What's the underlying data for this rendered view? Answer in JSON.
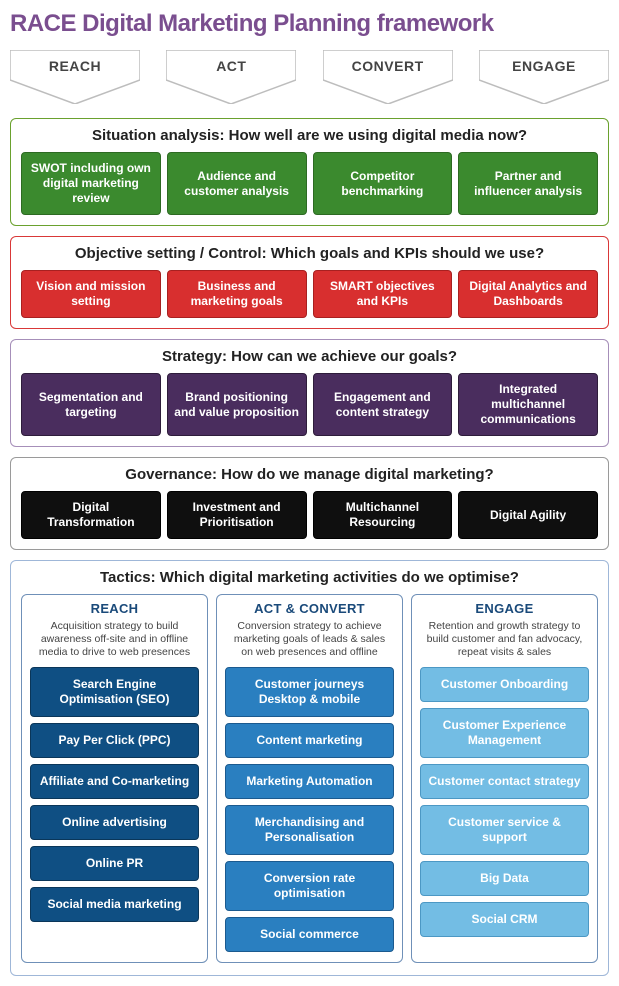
{
  "title": "RACE Digital Marketing Planning framework",
  "title_color": "#7a4e8f",
  "chevrons": [
    "REACH",
    "ACT",
    "CONVERT",
    "ENGAGE"
  ],
  "chevron_fill": "#ffffff",
  "chevron_stroke": "#bdbdbd",
  "sections": [
    {
      "title": "Situation analysis: How well are we using digital media now?",
      "border": "#6aa12e",
      "bg": "#ffffff",
      "box_bg": "#3b8a2e",
      "box_border": "#2d6a22",
      "boxes": [
        "SWOT including own digital marketing review",
        "Audience and customer analysis",
        "Competitor benchmarking",
        "Partner and influencer analysis"
      ]
    },
    {
      "title": "Objective setting / Control: Which goals and KPIs should we use?",
      "border": "#d93838",
      "bg": "#ffffff",
      "box_bg": "#d82f2f",
      "box_border": "#a82020",
      "boxes": [
        "Vision and mission setting",
        "Business and marketing goals",
        "SMART objectives and KPIs",
        "Digital Analytics and Dashboards"
      ]
    },
    {
      "title": "Strategy: How can we achieve our goals?",
      "border": "#a68fb9",
      "bg": "#ffffff",
      "box_bg": "#4a2d5e",
      "box_border": "#2e1c3b",
      "boxes": [
        "Segmentation and targeting",
        "Brand positioning and value proposition",
        "Engagement and content strategy",
        "Integrated multichannel communications"
      ]
    },
    {
      "title": "Governance: How do we manage digital marketing?",
      "border": "#9a9a9a",
      "bg": "#ffffff",
      "box_bg": "#0f0f0f",
      "box_border": "#000000",
      "boxes": [
        "Digital Transformation",
        "Investment and Prioritisation",
        "Multichannel Resourcing",
        "Digital Agility"
      ]
    }
  ],
  "tactics": {
    "title": "Tactics: Which digital marketing activities do we optimise?",
    "border": "#9fb7d8",
    "columns": [
      {
        "head": "REACH",
        "sub": "Acquisition strategy to build awareness off-site and in offline media to drive to web presences",
        "border": "#6f90b8",
        "head_color": "#1a4a7a",
        "box_bg": "#0f4f83",
        "box_border": "#0a3659",
        "items": [
          "Search Engine Optimisation (SEO)",
          "Pay Per Click (PPC)",
          "Affiliate and Co-marketing",
          "Online advertising",
          "Online PR",
          "Social media marketing"
        ]
      },
      {
        "head": "ACT & CONVERT",
        "sub": "Conversion strategy to achieve marketing goals of leads & sales on web presences and offline",
        "border": "#6f90b8",
        "head_color": "#1a4a7a",
        "box_bg": "#2a7fc0",
        "box_border": "#1b5a8f",
        "items": [
          "Customer journeys Desktop & mobile",
          "Content marketing",
          "Marketing Automation",
          "Merchandising and Personalisation",
          "Conversion rate optimisation",
          "Social commerce"
        ]
      },
      {
        "head": "ENGAGE",
        "sub": "Retention and growth strategy to build customer and fan advocacy, repeat visits & sales",
        "border": "#6f90b8",
        "head_color": "#1a4a7a",
        "box_bg": "#73bde4",
        "box_border": "#4c98c4",
        "items": [
          "Customer Onboarding",
          "Customer Experience Management",
          "Customer contact strategy",
          "Customer service & support",
          "Big Data",
          "Social CRM"
        ]
      }
    ]
  }
}
